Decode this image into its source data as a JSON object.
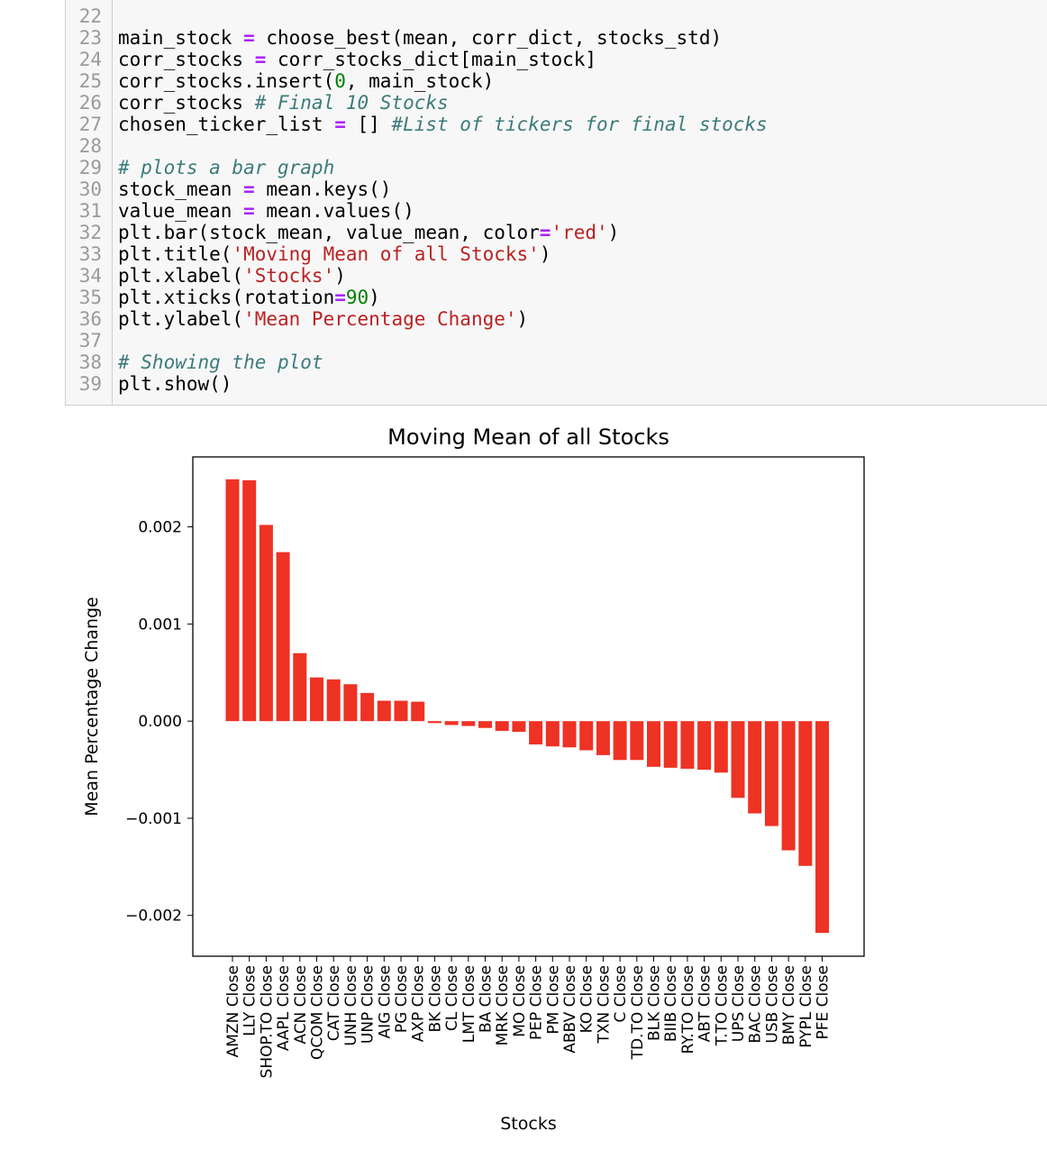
{
  "code": {
    "lines": [
      {
        "n": "22",
        "parts": []
      },
      {
        "n": "23",
        "parts": [
          [
            "",
            "main_stock "
          ],
          [
            "kw-op",
            "="
          ],
          [
            "",
            " choose_best(mean, corr_dict, stocks_std)"
          ]
        ]
      },
      {
        "n": "24",
        "parts": [
          [
            "",
            "corr_stocks "
          ],
          [
            "kw-op",
            "="
          ],
          [
            "",
            " corr_stocks_dict[main_stock]"
          ]
        ]
      },
      {
        "n": "25",
        "parts": [
          [
            "",
            "corr_stocks.insert("
          ],
          [
            "num",
            "0"
          ],
          [
            "",
            ", main_stock)"
          ]
        ]
      },
      {
        "n": "26",
        "parts": [
          [
            "",
            "corr_stocks "
          ],
          [
            "cmt",
            "# Final 10 Stocks"
          ]
        ]
      },
      {
        "n": "27",
        "parts": [
          [
            "",
            "chosen_ticker_list "
          ],
          [
            "kw-op",
            "="
          ],
          [
            "",
            " [] "
          ],
          [
            "cmt",
            "#List of tickers for final stocks"
          ]
        ]
      },
      {
        "n": "28",
        "parts": []
      },
      {
        "n": "29",
        "parts": [
          [
            "cmt",
            "# plots a bar graph"
          ]
        ]
      },
      {
        "n": "30",
        "parts": [
          [
            "",
            "stock_mean "
          ],
          [
            "kw-op",
            "="
          ],
          [
            "",
            " mean.keys()"
          ]
        ]
      },
      {
        "n": "31",
        "parts": [
          [
            "",
            "value_mean "
          ],
          [
            "kw-op",
            "="
          ],
          [
            "",
            " mean.values()"
          ]
        ]
      },
      {
        "n": "32",
        "parts": [
          [
            "",
            "plt.bar(stock_mean, value_mean, color"
          ],
          [
            "kw-op",
            "="
          ],
          [
            "str",
            "'red'"
          ],
          [
            "",
            ")"
          ]
        ]
      },
      {
        "n": "33",
        "parts": [
          [
            "",
            "plt.title("
          ],
          [
            "str",
            "'Moving Mean of all Stocks'"
          ],
          [
            "",
            ")"
          ]
        ]
      },
      {
        "n": "34",
        "parts": [
          [
            "",
            "plt.xlabel("
          ],
          [
            "str",
            "'Stocks'"
          ],
          [
            "",
            ")"
          ]
        ]
      },
      {
        "n": "35",
        "parts": [
          [
            "",
            "plt.xticks(rotation"
          ],
          [
            "kw-op",
            "="
          ],
          [
            "num",
            "90"
          ],
          [
            "",
            ")"
          ]
        ]
      },
      {
        "n": "36",
        "parts": [
          [
            "",
            "plt.ylabel("
          ],
          [
            "str",
            "'Mean Percentage Change'"
          ],
          [
            "",
            ")"
          ]
        ]
      },
      {
        "n": "37",
        "parts": []
      },
      {
        "n": "38",
        "parts": [
          [
            "cmt",
            "# Showing the plot"
          ]
        ]
      },
      {
        "n": "39",
        "parts": [
          [
            "",
            "plt.show()"
          ]
        ]
      }
    ]
  },
  "chart_data": {
    "type": "bar",
    "title": "Moving Mean of all Stocks",
    "xlabel": "Stocks",
    "ylabel": "Mean Percentage Change",
    "bar_color": "#ee3224",
    "ylim": [
      -0.00242,
      0.00272
    ],
    "yticks": [
      0.002,
      0.001,
      0.0,
      -0.001,
      -0.002
    ],
    "ytick_labels": [
      "0.002",
      "0.001",
      "0.000",
      "−0.001",
      "−0.002"
    ],
    "categories": [
      "AMZN Close",
      "LLY Close",
      "SHOP.TO Close",
      "AAPL Close",
      "ACN Close",
      "QCOM Close",
      "CAT Close",
      "UNH Close",
      "UNP Close",
      "AIG Close",
      "PG Close",
      "AXP Close",
      "BK Close",
      "CL Close",
      "LMT Close",
      "BA Close",
      "MRK Close",
      "MO Close",
      "PEP Close",
      "PM Close",
      "ABBV Close",
      "KO Close",
      "TXN Close",
      "C Close",
      "TD.TO Close",
      "BLK Close",
      "BIIB Close",
      "RY.TO Close",
      "ABT Close",
      "T.TO Close",
      "UPS Close",
      "BAC Close",
      "USB Close",
      "BMY Close",
      "PYPL Close",
      "PFE Close"
    ],
    "values": [
      0.00249,
      0.00248,
      0.00202,
      0.00174,
      0.0007,
      0.00045,
      0.00043,
      0.00038,
      0.00029,
      0.00021,
      0.00021,
      0.0002,
      -2e-05,
      -4e-05,
      -5e-05,
      -7e-05,
      -0.0001,
      -0.00011,
      -0.00024,
      -0.00026,
      -0.00027,
      -0.0003,
      -0.00035,
      -0.0004,
      -0.0004,
      -0.00047,
      -0.00048,
      -0.00049,
      -0.0005,
      -0.00053,
      -0.00079,
      -0.00095,
      -0.00108,
      -0.00133,
      -0.00149,
      -0.00218
    ]
  }
}
